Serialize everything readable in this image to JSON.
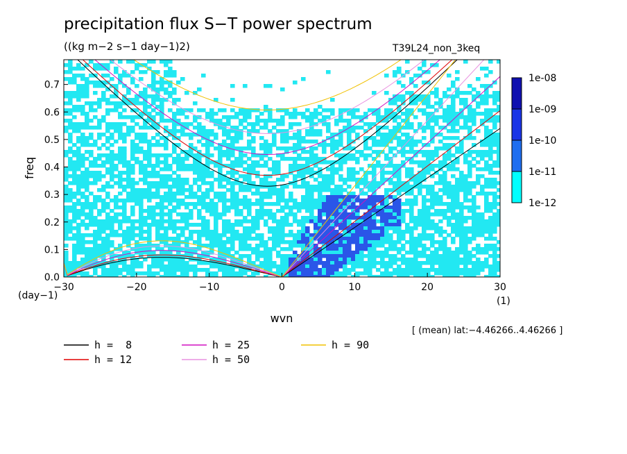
{
  "chart_data": {
    "type": "heatmap",
    "title": "precipitation flux S−T power spectrum",
    "subtitle": "((kg m−2 s−1 day−1)2)",
    "run_label": "T39L24_non_3keq",
    "region_note": "[ (mean) lat:−4.46266..4.46266 ]",
    "xlabel": "wvn",
    "ylabel": "freq",
    "x_unit": "(1)",
    "y_unit": "(day−1)",
    "xlim": [
      -30,
      30
    ],
    "ylim": [
      0,
      0.79
    ],
    "xticks": [
      -30,
      -20,
      -10,
      0,
      10,
      20,
      30
    ],
    "xtick_labels": [
      "−30",
      "−20",
      "−10",
      "0",
      "10",
      "20",
      "30"
    ],
    "yticks": [
      0.0,
      0.1,
      0.2,
      0.3,
      0.4,
      0.5,
      0.6,
      0.7
    ],
    "ytick_labels": [
      "0.0",
      "0.1",
      "0.2",
      "0.3",
      "0.4",
      "0.5",
      "0.6",
      "0.7"
    ],
    "colorbar": {
      "levels": [
        "1e-12",
        "1e-11",
        "1e-10",
        "1e-09",
        "1e-08"
      ],
      "colors": [
        "#00ffff",
        "#1e6ef0",
        "#1a34e6",
        "#1010b0",
        "#4a14b0"
      ]
    },
    "shading_colors": {
      "cyan": "#22e8f2",
      "blue": "#2a56e8"
    },
    "dispersion_curves": [
      {
        "label": "h =  8",
        "h": 8,
        "color": "#000000"
      },
      {
        "label": "h = 12",
        "h": 12,
        "color": "#e00000"
      },
      {
        "label": "h = 25",
        "h": 25,
        "color": "#d010c0"
      },
      {
        "label": "h = 50",
        "h": 50,
        "color": "#e890e0"
      },
      {
        "label": "h = 90",
        "h": 90,
        "color": "#f0c000"
      }
    ]
  }
}
